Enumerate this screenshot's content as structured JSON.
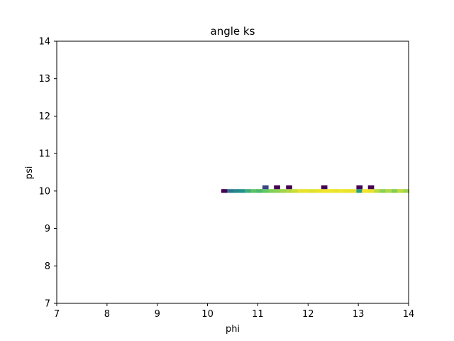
{
  "chart_data": {
    "type": "heatmap",
    "title": "angle ks",
    "xlabel": "phi",
    "ylabel": "psi",
    "xlim": [
      7,
      14
    ],
    "ylim": [
      7,
      14
    ],
    "xticks": [
      "7",
      "8",
      "9",
      "10",
      "11",
      "12",
      "13",
      "14"
    ],
    "yticks": [
      "7",
      "8",
      "9",
      "10",
      "11",
      "12",
      "13",
      "14"
    ],
    "colormap": "viridis",
    "grid": false,
    "cell_width": 0.1167,
    "cell_height": 0.1,
    "cells": [
      {
        "x": 10.33,
        "y": 10.0,
        "v": 0.0
      },
      {
        "x": 10.45,
        "y": 10.0,
        "v": 0.38
      },
      {
        "x": 10.57,
        "y": 10.0,
        "v": 0.45
      },
      {
        "x": 10.68,
        "y": 10.0,
        "v": 0.5
      },
      {
        "x": 10.8,
        "y": 10.0,
        "v": 0.62
      },
      {
        "x": 10.92,
        "y": 10.0,
        "v": 0.72
      },
      {
        "x": 11.03,
        "y": 10.0,
        "v": 0.68
      },
      {
        "x": 11.15,
        "y": 10.0,
        "v": 0.75
      },
      {
        "x": 11.27,
        "y": 10.0,
        "v": 0.8
      },
      {
        "x": 11.38,
        "y": 10.0,
        "v": 0.82
      },
      {
        "x": 11.5,
        "y": 10.0,
        "v": 0.85
      },
      {
        "x": 11.62,
        "y": 10.0,
        "v": 0.88
      },
      {
        "x": 11.73,
        "y": 10.0,
        "v": 0.92
      },
      {
        "x": 11.85,
        "y": 10.0,
        "v": 0.96
      },
      {
        "x": 11.97,
        "y": 10.0,
        "v": 0.97
      },
      {
        "x": 12.08,
        "y": 10.0,
        "v": 0.95
      },
      {
        "x": 12.2,
        "y": 10.0,
        "v": 0.97
      },
      {
        "x": 12.32,
        "y": 10.0,
        "v": 0.98
      },
      {
        "x": 12.43,
        "y": 10.0,
        "v": 0.98
      },
      {
        "x": 12.55,
        "y": 10.0,
        "v": 0.97
      },
      {
        "x": 12.67,
        "y": 10.0,
        "v": 0.98
      },
      {
        "x": 12.78,
        "y": 10.0,
        "v": 0.97
      },
      {
        "x": 12.9,
        "y": 10.0,
        "v": 0.96
      },
      {
        "x": 13.02,
        "y": 10.0,
        "v": 0.55
      },
      {
        "x": 13.13,
        "y": 10.0,
        "v": 0.98
      },
      {
        "x": 13.25,
        "y": 10.0,
        "v": 0.97
      },
      {
        "x": 13.37,
        "y": 10.0,
        "v": 0.9
      },
      {
        "x": 13.48,
        "y": 10.0,
        "v": 0.82
      },
      {
        "x": 13.6,
        "y": 10.0,
        "v": 0.88
      },
      {
        "x": 13.72,
        "y": 10.0,
        "v": 0.8
      },
      {
        "x": 13.83,
        "y": 10.0,
        "v": 0.9
      },
      {
        "x": 13.95,
        "y": 10.0,
        "v": 0.85
      },
      {
        "x": 11.15,
        "y": 10.1,
        "v": 0.2
      },
      {
        "x": 11.38,
        "y": 10.1,
        "v": 0.0
      },
      {
        "x": 11.62,
        "y": 10.1,
        "v": 0.0
      },
      {
        "x": 12.32,
        "y": 10.1,
        "v": 0.0
      },
      {
        "x": 13.02,
        "y": 10.1,
        "v": 0.0
      },
      {
        "x": 13.25,
        "y": 10.1,
        "v": 0.0
      }
    ]
  }
}
